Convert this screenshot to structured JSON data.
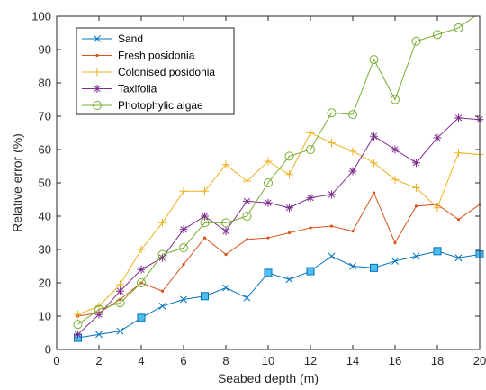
{
  "chart_data": {
    "type": "line",
    "xlabel": "Seabed depth (m)",
    "ylabel": "Relative error (%)",
    "xlim": [
      0,
      20
    ],
    "ylim": [
      0,
      100
    ],
    "xticks": [
      "0",
      "2",
      "4",
      "6",
      "8",
      "10",
      "12",
      "14",
      "16",
      "18",
      "20"
    ],
    "yticks": [
      "0",
      "10",
      "20",
      "30",
      "40",
      "50",
      "60",
      "70",
      "80",
      "90",
      "100"
    ],
    "grid": false,
    "legend_position": "top-left",
    "x": [
      1,
      2,
      3,
      4,
      5,
      6,
      7,
      8,
      9,
      10,
      11,
      12,
      13,
      14,
      15,
      16,
      17,
      18,
      19,
      20
    ],
    "series": [
      {
        "name": "Sand",
        "color": "#0072BD",
        "marker": "x",
        "values": [
          3.5,
          4.5,
          5.5,
          9.5,
          13,
          15,
          16,
          18.5,
          15.5,
          23,
          21,
          23.5,
          28,
          25,
          24.5,
          26.5,
          28,
          29.5,
          27.5,
          28.5
        ],
        "square_markers_at": [
          1,
          4,
          7,
          10,
          12,
          15,
          18,
          20
        ]
      },
      {
        "name": "Fresh posidonia",
        "color": "#D95319",
        "marker": "dot",
        "values": [
          10,
          11,
          15,
          20,
          17.5,
          25.5,
          33.5,
          28.5,
          33,
          33.5,
          35,
          36.5,
          37,
          35.5,
          47,
          32,
          43,
          43.5,
          39,
          43.5
        ]
      },
      {
        "name": "Colonised posidonia",
        "color": "#EDB120",
        "marker": "+",
        "values": [
          10.5,
          13,
          19.5,
          30,
          38,
          47.5,
          47.5,
          55.5,
          50.5,
          56.5,
          52.5,
          65,
          62,
          59.5,
          56,
          51,
          48.5,
          42.5,
          59,
          58.5
        ]
      },
      {
        "name": "Taxifolia",
        "color": "#7E2F8E",
        "marker": "*",
        "values": [
          4.5,
          10.5,
          17.5,
          24,
          27.5,
          36,
          40,
          35.5,
          44.5,
          44,
          42.5,
          45.5,
          46.5,
          53.5,
          64,
          60,
          56,
          63.5,
          69.5,
          69
        ]
      },
      {
        "name": "Photophylic algae",
        "color": "#77AC30",
        "marker": "o",
        "values": [
          7.5,
          12,
          14,
          20,
          28.5,
          30.5,
          38,
          38,
          40,
          50,
          58,
          60,
          71,
          70.5,
          87,
          75,
          92.5,
          94.5,
          96.5,
          101
        ]
      }
    ]
  }
}
